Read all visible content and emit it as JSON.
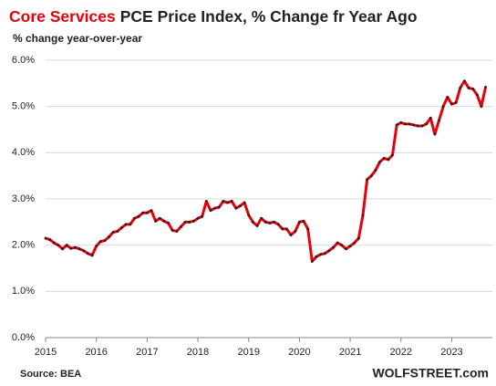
{
  "chart_data": {
    "type": "line",
    "title_highlight": "Core Services",
    "title": "PCE Price Index, % Change fr Year Ago",
    "subtitle": "% change year-over-year",
    "source": "Source: BEA",
    "watermark": "WOLFSTREET.com",
    "color": "#e8000b",
    "marker_color": "#222222",
    "title_highlight_color": "#e8000b",
    "grid": true,
    "xlim": [
      2015,
      2023.8
    ],
    "xticks": [
      2015,
      2016,
      2017,
      2018,
      2019,
      2020,
      2021,
      2022,
      2023
    ],
    "ylim": [
      0,
      6
    ],
    "yticks": [
      {
        "value": 0,
        "label": "0.0%"
      },
      {
        "value": 1,
        "label": "1.0%"
      },
      {
        "value": 2,
        "label": "2.0%"
      },
      {
        "value": 3,
        "label": "3.0%"
      },
      {
        "value": 4,
        "label": "4.0%"
      },
      {
        "value": 5,
        "label": "5.0%"
      },
      {
        "value": 6,
        "label": "6.0%"
      }
    ],
    "x": [
      2015,
      2015.083,
      2015.167,
      2015.25,
      2015.333,
      2015.417,
      2015.5,
      2015.583,
      2015.667,
      2015.75,
      2015.833,
      2015.917,
      2016,
      2016.083,
      2016.167,
      2016.25,
      2016.333,
      2016.417,
      2016.5,
      2016.583,
      2016.667,
      2016.75,
      2016.833,
      2016.917,
      2017,
      2017.083,
      2017.167,
      2017.25,
      2017.333,
      2017.417,
      2017.5,
      2017.583,
      2017.667,
      2017.75,
      2017.833,
      2017.917,
      2018,
      2018.083,
      2018.167,
      2018.25,
      2018.333,
      2018.417,
      2018.5,
      2018.583,
      2018.667,
      2018.75,
      2018.833,
      2018.917,
      2019,
      2019.083,
      2019.167,
      2019.25,
      2019.333,
      2019.417,
      2019.5,
      2019.583,
      2019.667,
      2019.75,
      2019.833,
      2019.917,
      2020,
      2020.083,
      2020.167,
      2020.25,
      2020.333,
      2020.417,
      2020.5,
      2020.583,
      2020.667,
      2020.75,
      2020.833,
      2020.917,
      2021,
      2021.083,
      2021.167,
      2021.25,
      2021.333,
      2021.417,
      2021.5,
      2021.583,
      2021.667,
      2021.75,
      2021.833,
      2021.917,
      2022,
      2022.083,
      2022.167,
      2022.25,
      2022.333,
      2022.417,
      2022.5,
      2022.583,
      2022.667,
      2022.75,
      2022.833,
      2022.917,
      2023,
      2023.083,
      2023.167,
      2023.25,
      2023.333,
      2023.417,
      2023.5,
      2023.583,
      2023.667
    ],
    "values": [
      2.15,
      2.12,
      2.05,
      2.0,
      1.92,
      2.0,
      1.93,
      1.95,
      1.92,
      1.88,
      1.82,
      1.78,
      1.98,
      2.08,
      2.1,
      2.18,
      2.28,
      2.3,
      2.38,
      2.45,
      2.45,
      2.58,
      2.62,
      2.7,
      2.7,
      2.75,
      2.52,
      2.58,
      2.52,
      2.48,
      2.32,
      2.3,
      2.4,
      2.5,
      2.5,
      2.52,
      2.58,
      2.62,
      2.95,
      2.75,
      2.8,
      2.82,
      2.95,
      2.92,
      2.95,
      2.8,
      2.85,
      2.92,
      2.65,
      2.5,
      2.42,
      2.58,
      2.5,
      2.48,
      2.5,
      2.45,
      2.35,
      2.35,
      2.22,
      2.3,
      2.5,
      2.52,
      2.35,
      1.65,
      1.75,
      1.8,
      1.82,
      1.88,
      1.95,
      2.05,
      2.0,
      1.92,
      1.98,
      2.05,
      2.15,
      2.65,
      3.42,
      3.5,
      3.62,
      3.8,
      3.88,
      3.85,
      3.95,
      4.6,
      4.65,
      4.62,
      4.62,
      4.6,
      4.58,
      4.58,
      4.62,
      4.75,
      4.4,
      4.7,
      5.0,
      5.2,
      5.05,
      5.08,
      5.4,
      5.55,
      5.4,
      5.38,
      5.25,
      5.0,
      5.42
    ]
  }
}
